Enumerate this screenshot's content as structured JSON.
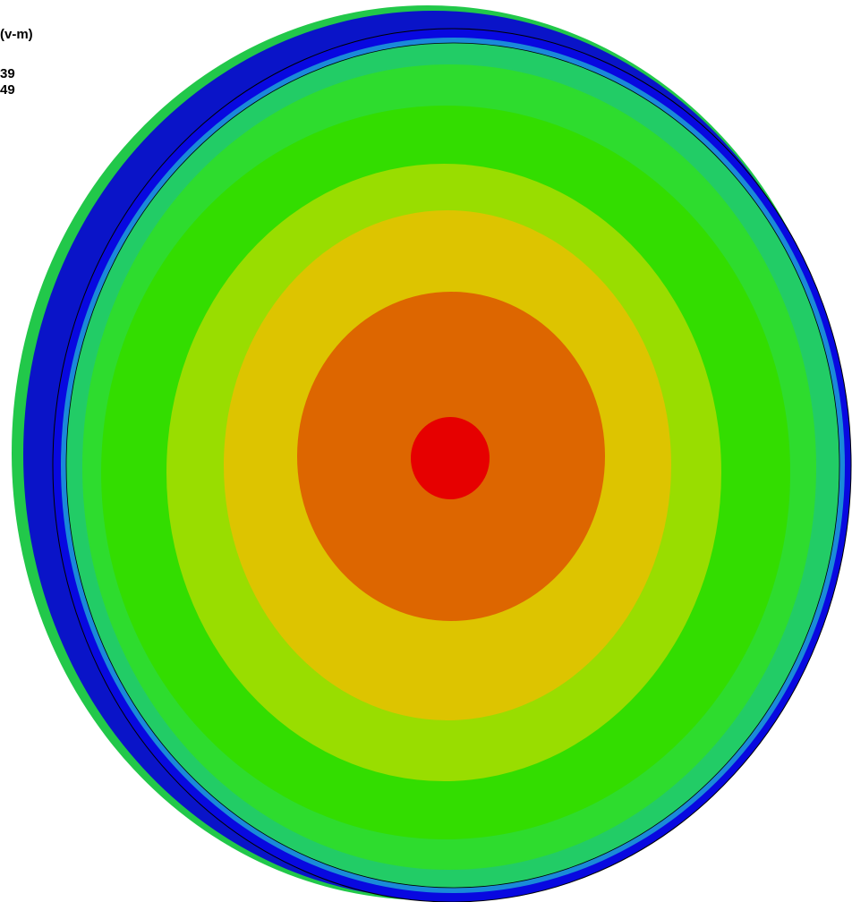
{
  "legend": {
    "title": "(v-m)",
    "lines": [
      "39",
      "49"
    ]
  }
}
